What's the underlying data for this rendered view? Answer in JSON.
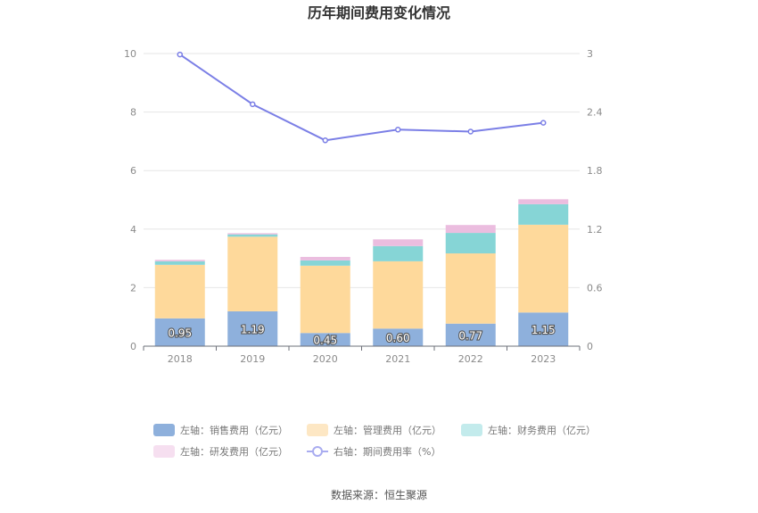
{
  "chart_data": {
    "type": "bar",
    "stacked": true,
    "title": "历年期间费用变化情况",
    "categories": [
      "2018",
      "2019",
      "2020",
      "2021",
      "2022",
      "2023"
    ],
    "series": [
      {
        "name": "左轴：销售费用（亿元）",
        "axis": "left",
        "color": "#8eb0dc",
        "values": [
          0.95,
          1.19,
          0.45,
          0.6,
          0.77,
          1.15
        ],
        "labels": [
          "0.95",
          "1.19",
          "0.45",
          "0.60",
          "0.77",
          "1.15"
        ]
      },
      {
        "name": "左轴：管理费用（亿元）",
        "axis": "left",
        "color": "#fed99b",
        "values": [
          1.83,
          2.55,
          2.3,
          2.3,
          2.4,
          3.0
        ]
      },
      {
        "name": "左轴：财务费用（亿元）",
        "axis": "left",
        "color": "#86d5d6",
        "values": [
          0.12,
          0.08,
          0.18,
          0.52,
          0.7,
          0.7
        ]
      },
      {
        "name": "左轴：研发费用（亿元）",
        "axis": "left",
        "color": "#ebbddf",
        "values": [
          0.05,
          0.04,
          0.12,
          0.23,
          0.27,
          0.17
        ]
      },
      {
        "name": "右轴：期间费用率（%）",
        "axis": "right",
        "type": "line",
        "color": "#7b7fe6",
        "values": [
          2.99,
          2.48,
          2.11,
          2.22,
          2.2,
          2.29
        ]
      }
    ],
    "y_left": {
      "min": 0,
      "max": 10,
      "ticks": [
        "0",
        "2",
        "4",
        "6",
        "8",
        "10"
      ]
    },
    "y_right": {
      "min": 0,
      "max": 3,
      "ticks": [
        "0",
        "0.6",
        "1.2",
        "1.8",
        "2.4",
        "3"
      ]
    },
    "grid": true,
    "legend_position": "bottom"
  },
  "source": "数据来源：恒生聚源"
}
